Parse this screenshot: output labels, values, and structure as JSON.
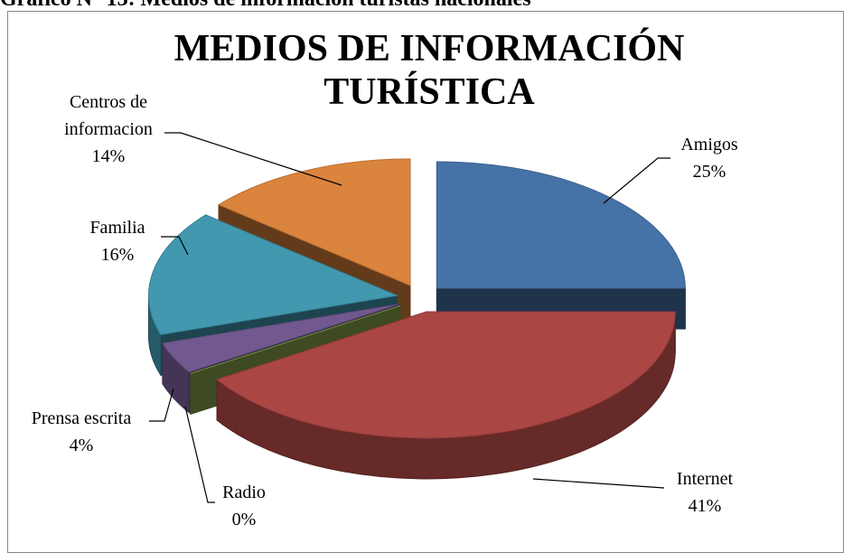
{
  "caption": "Gráfico N° 13: Medios de información turistas nacionales",
  "chart_data": {
    "type": "pie3d",
    "title": "MEDIOS DE INFORMACIÓN TURÍSTICA",
    "categories": [
      "Amigos",
      "Internet",
      "Radio",
      "Prensa escrita",
      "Familia",
      "Centros de informacion"
    ],
    "values": [
      25,
      41,
      0,
      4,
      16,
      14
    ],
    "value_labels": [
      "25%",
      "41%",
      "0%",
      "4%",
      "16%",
      "14%"
    ],
    "colors": [
      "#4572a7",
      "#aa4643",
      "#89a54e",
      "#71588f",
      "#4198af",
      "#db843d"
    ]
  }
}
